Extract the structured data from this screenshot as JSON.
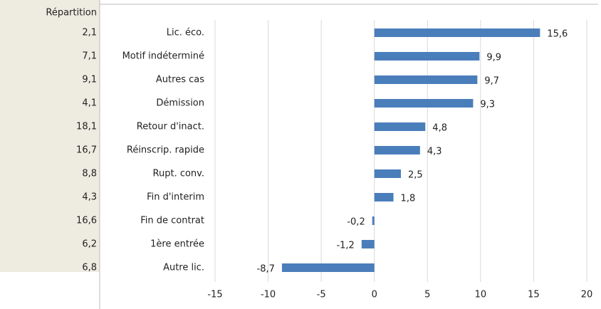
{
  "chart_data": {
    "type": "bar",
    "orientation": "horizontal",
    "table_header": "Répartition",
    "table_values": [
      "2,1",
      "7,1",
      "9,1",
      "4,1",
      "18,1",
      "16,7",
      "8,8",
      "4,3",
      "16,6",
      "6,2",
      "6,8"
    ],
    "categories": [
      "Lic. éco.",
      "Motif indéterminé",
      "Autres cas",
      "Démission",
      "Retour d'inact.",
      "Réinscrip. rapide",
      "Rupt. conv.",
      "Fin d'interim",
      "Fin de contrat",
      "1ère entrée",
      "Autre lic."
    ],
    "values": [
      15.6,
      9.9,
      9.7,
      9.3,
      4.8,
      4.3,
      2.5,
      1.8,
      -0.2,
      -1.2,
      -8.7
    ],
    "value_labels": [
      "15,6",
      "9,9",
      "9,7",
      "9,3",
      "4,8",
      "4,3",
      "2,5",
      "1,8",
      "-0,2",
      "-1,2",
      "-8,7"
    ],
    "color": "#4a7ebb",
    "xlim": [
      -15,
      20
    ],
    "xticks": [
      -15,
      -10,
      -5,
      0,
      5,
      10,
      15,
      20
    ],
    "grid": true
  }
}
